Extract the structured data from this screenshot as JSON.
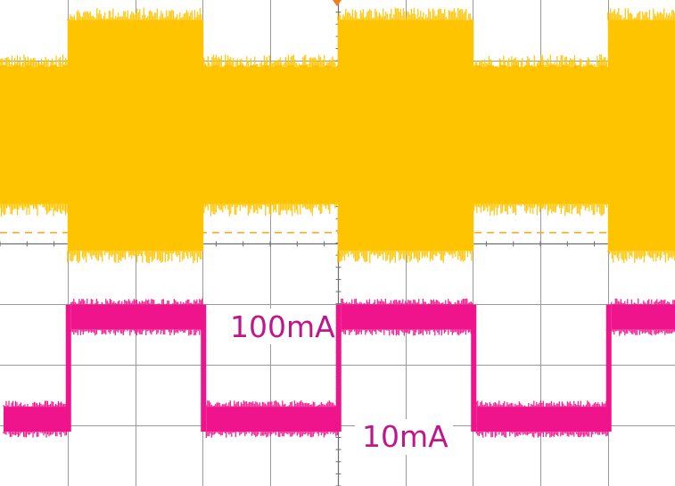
{
  "chart_data": {
    "type": "line",
    "title": "",
    "xlabel": "",
    "ylabel": "",
    "grid": true,
    "x_divisions": 10,
    "y_divisions": 8,
    "colors": {
      "grid": "#9a9a9a",
      "voltage_trace": "#ffc400",
      "current_trace": "#f0148c",
      "cursor": "#f5a623",
      "trigger_marker": "#f07d18",
      "label_text": "#c0168c",
      "label_background": "#ffffff"
    },
    "transitions_time_div": [
      0.5,
      1.5,
      2.5,
      3.5,
      4.5
    ],
    "series": [
      {
        "name": "",
        "channel": "voltage",
        "state_levels_div": [
          {
            "from": 0.0,
            "to": 0.5,
            "center": 5.77,
            "half_width": 1.13
          },
          {
            "from": 0.5,
            "to": 1.5,
            "center": 5.77,
            "half_width": 1.9
          },
          {
            "from": 1.5,
            "to": 2.5,
            "center": 5.77,
            "half_width": 1.13
          },
          {
            "from": 2.5,
            "to": 3.5,
            "center": 5.77,
            "half_width": 1.9
          },
          {
            "from": 3.5,
            "to": 4.5,
            "center": 5.77,
            "half_width": 1.13
          },
          {
            "from": 4.5,
            "to": 5.0,
            "center": 5.77,
            "half_width": 1.9
          }
        ]
      },
      {
        "name": "",
        "channel": "current",
        "state_levels_div": [
          {
            "from": 0.0,
            "to": 0.5,
            "level": 1.1
          },
          {
            "from": 0.5,
            "to": 1.5,
            "level": 2.78
          },
          {
            "from": 1.5,
            "to": 2.5,
            "level": 1.1
          },
          {
            "from": 2.5,
            "to": 3.5,
            "level": 2.78
          },
          {
            "from": 3.5,
            "to": 4.5,
            "level": 1.1
          },
          {
            "from": 4.5,
            "to": 5.0,
            "level": 2.78
          }
        ]
      }
    ],
    "cursors_div": [
      6.91,
      4.17
    ],
    "annotations": [
      {
        "text": "100mA"
      },
      {
        "text": "10mA"
      }
    ]
  }
}
